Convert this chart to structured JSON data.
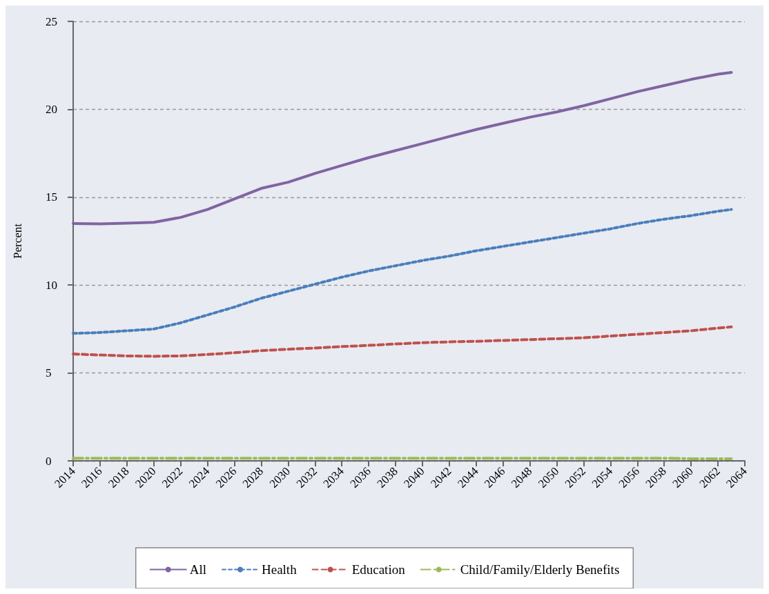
{
  "chart_data": {
    "type": "line",
    "ylabel": "Percent",
    "x": [
      2014,
      2016,
      2018,
      2020,
      2022,
      2024,
      2026,
      2028,
      2030,
      2032,
      2034,
      2036,
      2038,
      2040,
      2042,
      2044,
      2046,
      2048,
      2050,
      2052,
      2054,
      2056,
      2058,
      2060,
      2062,
      2063
    ],
    "xlim": [
      2014,
      2064
    ],
    "xticks": [
      2014,
      2016,
      2018,
      2020,
      2022,
      2024,
      2026,
      2028,
      2030,
      2032,
      2034,
      2036,
      2038,
      2040,
      2042,
      2044,
      2046,
      2048,
      2050,
      2052,
      2054,
      2056,
      2058,
      2060,
      2062,
      2064
    ],
    "ylim": [
      0,
      25
    ],
    "yticks": [
      0,
      5,
      10,
      15,
      20,
      25
    ],
    "grid": "y",
    "legend": "bottom",
    "marker": "none",
    "series": [
      {
        "name": "All",
        "color": "#8064a2",
        "line_style": "solid",
        "values": [
          13.5,
          13.48,
          13.52,
          13.57,
          13.85,
          14.3,
          14.9,
          15.5,
          15.85,
          16.35,
          16.8,
          17.25,
          17.65,
          18.05,
          18.45,
          18.85,
          19.2,
          19.55,
          19.85,
          20.2,
          20.6,
          21.0,
          21.35,
          21.7,
          22.0,
          22.1
        ]
      },
      {
        "name": "Health",
        "color": "#4a7ebb",
        "line_style": "dotted",
        "values": [
          7.25,
          7.3,
          7.4,
          7.5,
          7.85,
          8.3,
          8.75,
          9.25,
          9.65,
          10.05,
          10.45,
          10.8,
          11.1,
          11.4,
          11.65,
          11.95,
          12.2,
          12.45,
          12.7,
          12.95,
          13.2,
          13.5,
          13.75,
          13.95,
          14.2,
          14.3
        ]
      },
      {
        "name": "Education",
        "color": "#c0504d",
        "line_style": "dashed",
        "values": [
          6.08,
          6.02,
          5.97,
          5.95,
          5.97,
          6.05,
          6.15,
          6.27,
          6.35,
          6.42,
          6.5,
          6.57,
          6.65,
          6.72,
          6.77,
          6.8,
          6.85,
          6.9,
          6.95,
          7.0,
          7.1,
          7.2,
          7.3,
          7.4,
          7.55,
          7.62
        ]
      },
      {
        "name": "Child/Family/Elderly Benefits",
        "color": "#9bbb59",
        "line_style": "dashdot",
        "values": [
          0.15,
          0.15,
          0.15,
          0.15,
          0.15,
          0.15,
          0.15,
          0.15,
          0.15,
          0.15,
          0.15,
          0.15,
          0.15,
          0.15,
          0.15,
          0.15,
          0.15,
          0.15,
          0.15,
          0.15,
          0.15,
          0.15,
          0.15,
          0.12,
          0.12,
          0.12
        ]
      }
    ]
  }
}
